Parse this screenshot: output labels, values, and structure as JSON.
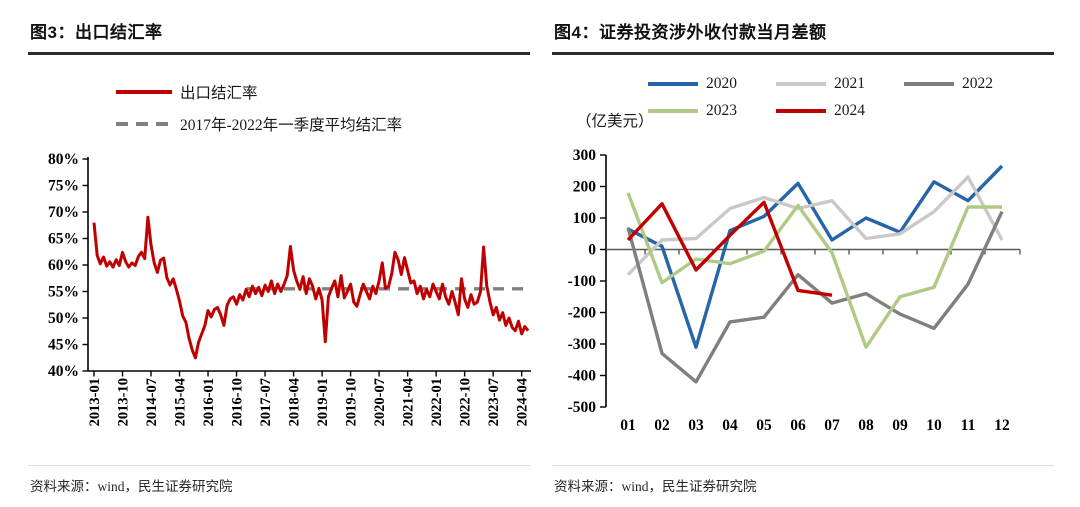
{
  "styles": {
    "title_rule_color": "#2b2b2b",
    "axis_color": "#000000",
    "zero_line_color": "#595959"
  },
  "chart_data": [
    {
      "id": "fig3",
      "type": "line",
      "title": "图3：出口结汇率",
      "source": "资料来源：wind，民生证券研究院",
      "x_start": "2013-01",
      "x_tick_interval_months": 9,
      "x_tick_labels": [
        "2013-01",
        "2013-10",
        "2014-07",
        "2015-04",
        "2016-01",
        "2016-10",
        "2017-07",
        "2018-04",
        "2019-01",
        "2019-10",
        "2020-07",
        "2021-04",
        "2022-01",
        "2022-10",
        "2023-07",
        "2024-04"
      ],
      "y_ticks": [
        "80%",
        "75%",
        "70%",
        "65%",
        "60%",
        "55%",
        "50%",
        "45%",
        "40%"
      ],
      "ylim": [
        40,
        80
      ],
      "grid": false,
      "legend_position": "top-left",
      "series": [
        {
          "name": "出口结汇率",
          "color": "#C00000",
          "style": "solid",
          "values": [
            68,
            61.8,
            60.2,
            61.5,
            59.8,
            60.6,
            59.6,
            61,
            59.9,
            62.4,
            60.6,
            59.6,
            60.4,
            59.9,
            61.6,
            62.4,
            61.2,
            69,
            63.8,
            60.4,
            58.6,
            60.9,
            61.3,
            57.6,
            56.2,
            57.4,
            55.4,
            53.2,
            50.4,
            49.2,
            46.2,
            44,
            42.5,
            45.4,
            47,
            48.6,
            51.4,
            50.2,
            51.6,
            52,
            50.6,
            48.6,
            52.4,
            53.6,
            54,
            52.6,
            54.4,
            53.4,
            55.4,
            54,
            56,
            54.6,
            55.8,
            54.2,
            56.2,
            55,
            57,
            54.6,
            56.4,
            55,
            56.4,
            58,
            63.5,
            59,
            57,
            55.4,
            57.8,
            54.6,
            57.4,
            56,
            53.6,
            55.6,
            53.4,
            45.5,
            54,
            55.6,
            57,
            54,
            58,
            53.8,
            55,
            56.4,
            53,
            52.2,
            54.4,
            56.4,
            55,
            53.6,
            56,
            54.6,
            57,
            60.4,
            55.6,
            56,
            58.4,
            62.4,
            61,
            58.2,
            61.4,
            59,
            56.6,
            57,
            54.6,
            56,
            53.6,
            55.4,
            54,
            56.4,
            55,
            53.6,
            56.4,
            54,
            52.6,
            55,
            53,
            50.6,
            57.4,
            53.6,
            52,
            54.4,
            52.6,
            53,
            55,
            63.4,
            56,
            53,
            50.6,
            52,
            49.6,
            51,
            48.6,
            50,
            48.2,
            47.6,
            49.4,
            47,
            48.4,
            47.6
          ]
        },
        {
          "name": "2017年-2022年一季度平均结汇率",
          "color": "#808080",
          "style": "dashed",
          "avg_value": 55.5,
          "from_index": 48
        }
      ]
    },
    {
      "id": "fig4",
      "type": "line",
      "title": "图4：证券投资涉外收付款当月差额",
      "source": "资料来源：wind，民生证券研究院",
      "unit_label": "（亿美元）",
      "categories": [
        "01",
        "02",
        "03",
        "04",
        "05",
        "06",
        "07",
        "08",
        "09",
        "10",
        "11",
        "12"
      ],
      "y_ticks": [
        300,
        200,
        100,
        0,
        -100,
        -200,
        -300,
        -400,
        -500
      ],
      "ylim": [
        -500,
        300
      ],
      "grid": false,
      "legend_position": "top",
      "series": [
        {
          "name": "2020",
          "color": "#2565A8",
          "style": "solid",
          "values": [
            65,
            10,
            -310,
            60,
            105,
            210,
            30,
            100,
            55,
            215,
            155,
            265
          ]
        },
        {
          "name": "2021",
          "color": "#C9C9C9",
          "style": "solid",
          "values": [
            -80,
            30,
            35,
            130,
            165,
            130,
            155,
            35,
            50,
            120,
            230,
            30
          ]
        },
        {
          "name": "2022",
          "color": "#7F7F7F",
          "style": "solid",
          "values": [
            70,
            -330,
            -420,
            -230,
            -215,
            -80,
            -170,
            -140,
            -205,
            -250,
            -110,
            120
          ]
        },
        {
          "name": "2023",
          "color": "#AECA84",
          "style": "solid",
          "values": [
            180,
            -105,
            -30,
            -45,
            -5,
            140,
            -10,
            -310,
            -150,
            -120,
            135,
            135
          ]
        },
        {
          "name": "2024",
          "color": "#C00000",
          "style": "solid",
          "values": [
            30,
            145,
            -65,
            45,
            150,
            -130,
            -145
          ]
        }
      ]
    }
  ]
}
